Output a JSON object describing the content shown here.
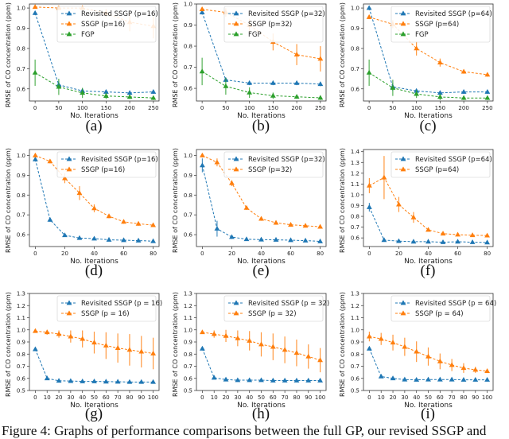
{
  "figure": {
    "caption": "Figure 4: Graphs of performance comparisons between the full GP, our revised SSGP and"
  },
  "colors": {
    "revisited": "#1f77b4",
    "ssgp": "#ff7f0e",
    "fgp": "#2ca02c"
  },
  "chart_data": [
    {
      "type": "line",
      "panel_label": "(a)",
      "xlabel": "No. Iterations",
      "ylabel": "RMSE of CO concentration (ppm)",
      "x": [
        0,
        50,
        100,
        150,
        200,
        250
      ],
      "xticks": [
        0,
        50,
        100,
        150,
        200,
        250
      ],
      "xlim": [
        -12,
        262
      ],
      "ylim": [
        0.54,
        1.02
      ],
      "yticks": [
        0.6,
        0.7,
        0.8,
        0.9,
        1.0
      ],
      "legend": "top-right",
      "series": [
        {
          "name": "Revisited SSGP (p=16)",
          "color": "revisited",
          "values": [
            0.975,
            0.62,
            0.59,
            0.585,
            0.58,
            0.585
          ],
          "yerr": [
            0.01,
            0.02,
            0.01,
            0.01,
            0.01,
            0.01
          ]
        },
        {
          "name": "SSGP (p=16)",
          "color": "ssgp",
          "values": [
            1.005,
            1.0,
            1.0,
            0.975,
            0.93,
            0.91
          ],
          "yerr": [
            0.008,
            0.01,
            0.01,
            0.02,
            0.045,
            0.06
          ]
        },
        {
          "name": "FGP",
          "color": "fgp",
          "values": [
            0.68,
            0.61,
            0.58,
            0.565,
            0.56,
            0.555
          ],
          "yerr": [
            0.065,
            0.04,
            0.025,
            0.015,
            0.01,
            0.01
          ]
        }
      ]
    },
    {
      "type": "line",
      "panel_label": "(b)",
      "xlabel": "No. Iterations",
      "ylabel": "RMSE of CO concentration (ppm)",
      "x": [
        0,
        50,
        100,
        150,
        200,
        250
      ],
      "xticks": [
        0,
        50,
        100,
        150,
        200,
        250
      ],
      "xlim": [
        -12,
        262
      ],
      "ylim": [
        0.54,
        1.0
      ],
      "yticks": [
        0.6,
        0.7,
        0.8,
        0.9,
        1.0
      ],
      "legend": "top-right",
      "series": [
        {
          "name": "Revisited SSGP (p=32)",
          "color": "revisited",
          "values": [
            0.96,
            0.64,
            0.625,
            0.625,
            0.625,
            0.62
          ],
          "yerr": [
            0.01,
            0.01,
            0.01,
            0.01,
            0.01,
            0.01
          ]
        },
        {
          "name": "SSGP (p=32)",
          "color": "ssgp",
          "values": [
            0.975,
            0.96,
            0.9,
            0.82,
            0.76,
            0.74
          ],
          "yerr": [
            0.01,
            0.02,
            0.03,
            0.04,
            0.05,
            0.06
          ]
        },
        {
          "name": "FGP",
          "color": "fgp",
          "values": [
            0.68,
            0.61,
            0.58,
            0.565,
            0.56,
            0.555
          ],
          "yerr": [
            0.065,
            0.04,
            0.025,
            0.015,
            0.01,
            0.01
          ]
        }
      ]
    },
    {
      "type": "line",
      "panel_label": "(c)",
      "xlabel": "No. Iterations",
      "ylabel": "RMSE of CO concentration (ppm)",
      "x": [
        0,
        50,
        100,
        150,
        200,
        250
      ],
      "xticks": [
        0,
        50,
        100,
        150,
        200,
        250
      ],
      "xlim": [
        -12,
        262
      ],
      "ylim": [
        0.54,
        1.02
      ],
      "yticks": [
        0.6,
        0.7,
        0.8,
        0.9,
        1.0
      ],
      "legend": "top-right",
      "series": [
        {
          "name": "Revisited SSGP (p=64)",
          "color": "revisited",
          "values": [
            1.0,
            0.61,
            0.59,
            0.58,
            0.585,
            0.585
          ],
          "yerr": [
            0.01,
            0.02,
            0.01,
            0.01,
            0.01,
            0.01
          ]
        },
        {
          "name": "SSGP (p=64)",
          "color": "ssgp",
          "values": [
            0.955,
            0.92,
            0.8,
            0.73,
            0.685,
            0.67
          ],
          "yerr": [
            0.01,
            0.02,
            0.035,
            0.02,
            0.01,
            0.01
          ]
        },
        {
          "name": "FGP",
          "color": "fgp",
          "values": [
            0.68,
            0.605,
            0.575,
            0.56,
            0.555,
            0.555
          ],
          "yerr": [
            0.065,
            0.04,
            0.02,
            0.015,
            0.01,
            0.01
          ]
        }
      ]
    },
    {
      "type": "line",
      "panel_label": "(d)",
      "xlabel": "No. Iterations",
      "ylabel": "RMSE of CO concentration (ppm)",
      "x": [
        0,
        10,
        20,
        30,
        40,
        50,
        60,
        70,
        80
      ],
      "xticks": [
        0,
        20,
        40,
        60,
        80
      ],
      "xlim": [
        -4,
        84
      ],
      "ylim": [
        0.54,
        1.03
      ],
      "yticks": [
        0.6,
        0.7,
        0.8,
        0.9,
        1.0
      ],
      "legend": "top-right",
      "series": [
        {
          "name": "Revisited SSGP (p=16)",
          "color": "revisited",
          "values": [
            0.98,
            0.675,
            0.597,
            0.583,
            0.58,
            0.574,
            0.572,
            0.57,
            0.567
          ],
          "yerr": [
            0.01,
            0.01,
            0.005,
            0.005,
            0.005,
            0.005,
            0.005,
            0.005,
            0.005
          ]
        },
        {
          "name": "SSGP (p=16)",
          "color": "ssgp",
          "values": [
            1.0,
            0.97,
            0.885,
            0.81,
            0.733,
            0.693,
            0.665,
            0.655,
            0.648
          ],
          "yerr": [
            0.01,
            0.01,
            0.025,
            0.035,
            0.02,
            0.01,
            0.01,
            0.01,
            0.008
          ]
        }
      ]
    },
    {
      "type": "line",
      "panel_label": "(e)",
      "xlabel": "No. Iterations",
      "ylabel": "RMSE of CO concentration (ppm)",
      "x": [
        0,
        10,
        20,
        30,
        40,
        50,
        60,
        70,
        80
      ],
      "xticks": [
        0,
        20,
        40,
        60,
        80
      ],
      "xlim": [
        -4,
        84
      ],
      "ylim": [
        0.54,
        1.03
      ],
      "yticks": [
        0.6,
        0.7,
        0.8,
        0.9,
        1.0
      ],
      "legend": "top-right",
      "series": [
        {
          "name": "Revisited SSGP (p=32)",
          "color": "revisited",
          "values": [
            0.95,
            0.63,
            0.588,
            0.577,
            0.575,
            0.574,
            0.572,
            0.57,
            0.566
          ],
          "yerr": [
            0.035,
            0.04,
            0.01,
            0.005,
            0.005,
            0.005,
            0.005,
            0.005,
            0.005
          ]
        },
        {
          "name": "SSGP (p=32)",
          "color": "ssgp",
          "values": [
            1.0,
            0.965,
            0.86,
            0.735,
            0.68,
            0.66,
            0.65,
            0.645,
            0.64
          ],
          "yerr": [
            0.01,
            0.02,
            0.015,
            0.01,
            0.01,
            0.01,
            0.008,
            0.008,
            0.008
          ]
        }
      ]
    },
    {
      "type": "line",
      "panel_label": "(f)",
      "xlabel": "No. Iterations",
      "ylabel": "RMSE of CO concentration (ppm)",
      "x": [
        0,
        10,
        20,
        30,
        40,
        50,
        60,
        70,
        80
      ],
      "xticks": [
        0,
        20,
        40,
        60,
        80
      ],
      "xlim": [
        -4,
        84
      ],
      "ylim": [
        0.52,
        1.42
      ],
      "yticks": [
        0.6,
        0.7,
        0.8,
        0.9,
        1.0,
        1.1,
        1.2,
        1.3,
        1.4
      ],
      "legend": "top-right",
      "series": [
        {
          "name": "Revisited SSGP (p=64)",
          "color": "revisited",
          "values": [
            0.885,
            0.58,
            0.57,
            0.565,
            0.565,
            0.56,
            0.565,
            0.56,
            0.558
          ],
          "yerr": [
            0.04,
            0.01,
            0.01,
            0.005,
            0.005,
            0.005,
            0.005,
            0.005,
            0.005
          ]
        },
        {
          "name": "SSGP (p=64)",
          "color": "ssgp",
          "values": [
            1.085,
            1.16,
            0.91,
            0.79,
            0.675,
            0.64,
            0.63,
            0.625,
            0.622
          ],
          "yerr": [
            0.07,
            0.2,
            0.07,
            0.05,
            0.015,
            0.015,
            0.015,
            0.015,
            0.015
          ]
        }
      ]
    },
    {
      "type": "line",
      "panel_label": "(g)",
      "xlabel": "No. Iterations",
      "ylabel": "RMSE of CO concentration (ppm)",
      "x": [
        0,
        10,
        20,
        30,
        40,
        50,
        60,
        70,
        80,
        90,
        100
      ],
      "xticks": [
        0,
        10,
        20,
        30,
        40,
        50,
        60,
        70,
        80,
        90,
        100
      ],
      "xlim": [
        -5,
        105
      ],
      "ylim": [
        0.5,
        1.3
      ],
      "yticks": [
        0.5,
        0.6,
        0.7,
        0.8,
        0.9,
        1.0,
        1.1,
        1.2,
        1.3
      ],
      "legend": "top-right",
      "series": [
        {
          "name": "Revisited SSGP (p = 16)",
          "color": "revisited",
          "values": [
            0.84,
            0.6,
            0.58,
            0.578,
            0.575,
            0.575,
            0.573,
            0.572,
            0.57,
            0.57,
            0.57
          ],
          "yerr": [
            0.005,
            0.005,
            0.005,
            0.005,
            0.005,
            0.005,
            0.005,
            0.005,
            0.005,
            0.005,
            0.005
          ]
        },
        {
          "name": "SSGP (p = 16)",
          "color": "ssgp",
          "values": [
            0.99,
            0.98,
            0.965,
            0.945,
            0.925,
            0.895,
            0.87,
            0.85,
            0.835,
            0.82,
            0.805
          ],
          "yerr": [
            0.01,
            0.02,
            0.03,
            0.05,
            0.07,
            0.09,
            0.11,
            0.12,
            0.13,
            0.13,
            0.13
          ]
        }
      ]
    },
    {
      "type": "line",
      "panel_label": "(h)",
      "xlabel": "No. Iterations",
      "ylabel": "RMSE of CO concentration (ppm)",
      "x": [
        0,
        10,
        20,
        30,
        40,
        50,
        60,
        70,
        80,
        90,
        100
      ],
      "xticks": [
        0,
        10,
        20,
        30,
        40,
        50,
        60,
        70,
        80,
        90,
        100
      ],
      "xlim": [
        -5,
        105
      ],
      "ylim": [
        0.5,
        1.3
      ],
      "yticks": [
        0.5,
        0.6,
        0.7,
        0.8,
        0.9,
        1.0,
        1.1,
        1.2,
        1.3
      ],
      "legend": "top-right",
      "series": [
        {
          "name": "Revisited SSGP (p = 32)",
          "color": "revisited",
          "values": [
            0.845,
            0.605,
            0.59,
            0.585,
            0.585,
            0.585,
            0.582,
            0.582,
            0.582,
            0.582,
            0.582
          ],
          "yerr": [
            0.005,
            0.005,
            0.005,
            0.005,
            0.005,
            0.005,
            0.005,
            0.005,
            0.005,
            0.005,
            0.005
          ]
        },
        {
          "name": "SSGP (p = 32)",
          "color": "ssgp",
          "values": [
            0.98,
            0.965,
            0.95,
            0.93,
            0.91,
            0.88,
            0.86,
            0.835,
            0.81,
            0.78,
            0.75
          ],
          "yerr": [
            0.01,
            0.03,
            0.05,
            0.065,
            0.08,
            0.1,
            0.11,
            0.11,
            0.11,
            0.1,
            0.1
          ]
        }
      ]
    },
    {
      "type": "line",
      "panel_label": "(i)",
      "xlabel": "No. Iterations",
      "ylabel": "RMSE of CO concentration (ppm)",
      "x": [
        0,
        10,
        20,
        30,
        40,
        50,
        60,
        70,
        80,
        90,
        100
      ],
      "xticks": [
        0,
        10,
        20,
        30,
        40,
        50,
        60,
        70,
        80,
        90,
        100
      ],
      "xlim": [
        -5,
        105
      ],
      "ylim": [
        0.5,
        1.3
      ],
      "yticks": [
        0.5,
        0.6,
        0.7,
        0.8,
        0.9,
        1.0,
        1.1,
        1.2,
        1.3
      ],
      "legend": "top-right",
      "series": [
        {
          "name": "Revisited SSGP (p = 64)",
          "color": "revisited",
          "values": [
            0.845,
            0.615,
            0.6,
            0.59,
            0.588,
            0.59,
            0.59,
            0.59,
            0.588,
            0.588,
            0.588
          ],
          "yerr": [
            0.005,
            0.005,
            0.005,
            0.005,
            0.005,
            0.005,
            0.005,
            0.005,
            0.005,
            0.005,
            0.005
          ]
        },
        {
          "name": "SSGP (p = 64)",
          "color": "ssgp",
          "values": [
            0.945,
            0.925,
            0.895,
            0.86,
            0.82,
            0.78,
            0.74,
            0.71,
            0.685,
            0.67,
            0.66
          ],
          "yerr": [
            0.04,
            0.05,
            0.065,
            0.075,
            0.085,
            0.075,
            0.065,
            0.05,
            0.04,
            0.025,
            0.015
          ]
        }
      ]
    }
  ]
}
